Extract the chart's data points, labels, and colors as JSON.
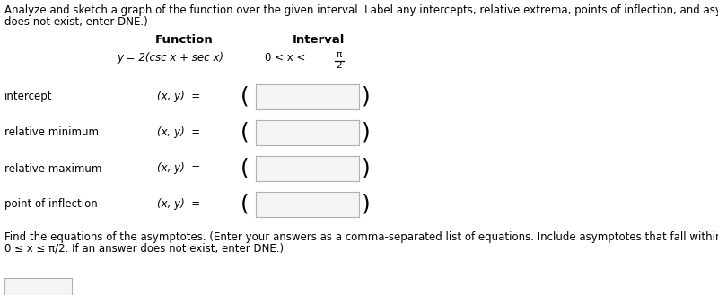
{
  "title_line1": "Analyze and sketch a graph of the function over the given interval. Label any intercepts, relative extrema, points of inflection, and asymptotes. (If an answer",
  "title_line2": "does not exist, enter DNE.)",
  "col_function": "Function",
  "col_interval": "Interval",
  "function_expr": "y = 2(csc x + sec x)",
  "interval_prefix": "0 < x < ",
  "interval_frac_num": "π",
  "interval_frac_den": "2",
  "rows": [
    {
      "label": "intercept",
      "prefix": "(x, y)  ="
    },
    {
      "label": "relative minimum",
      "prefix": "(x, y)  ="
    },
    {
      "label": "relative maximum",
      "prefix": "(x, y)  ="
    },
    {
      "label": "point of inflection",
      "prefix": "(x, y)  ="
    }
  ],
  "footer_line1": "Find the equations of the asymptotes. (Enter your answers as a comma-separated list of equations. Include asymptotes that fall within the closed interval",
  "footer_line2": "0 ≤ x ≤ π/2. If an answer does not exist, enter DNE.)",
  "bg_color": "#ffffff",
  "text_color": "#000000",
  "box_edge_color": "#b0b0b0",
  "box_face_color": "#f5f5f5",
  "font_size_body": 8.5,
  "font_size_bold": 9.5,
  "font_size_paren": 18
}
